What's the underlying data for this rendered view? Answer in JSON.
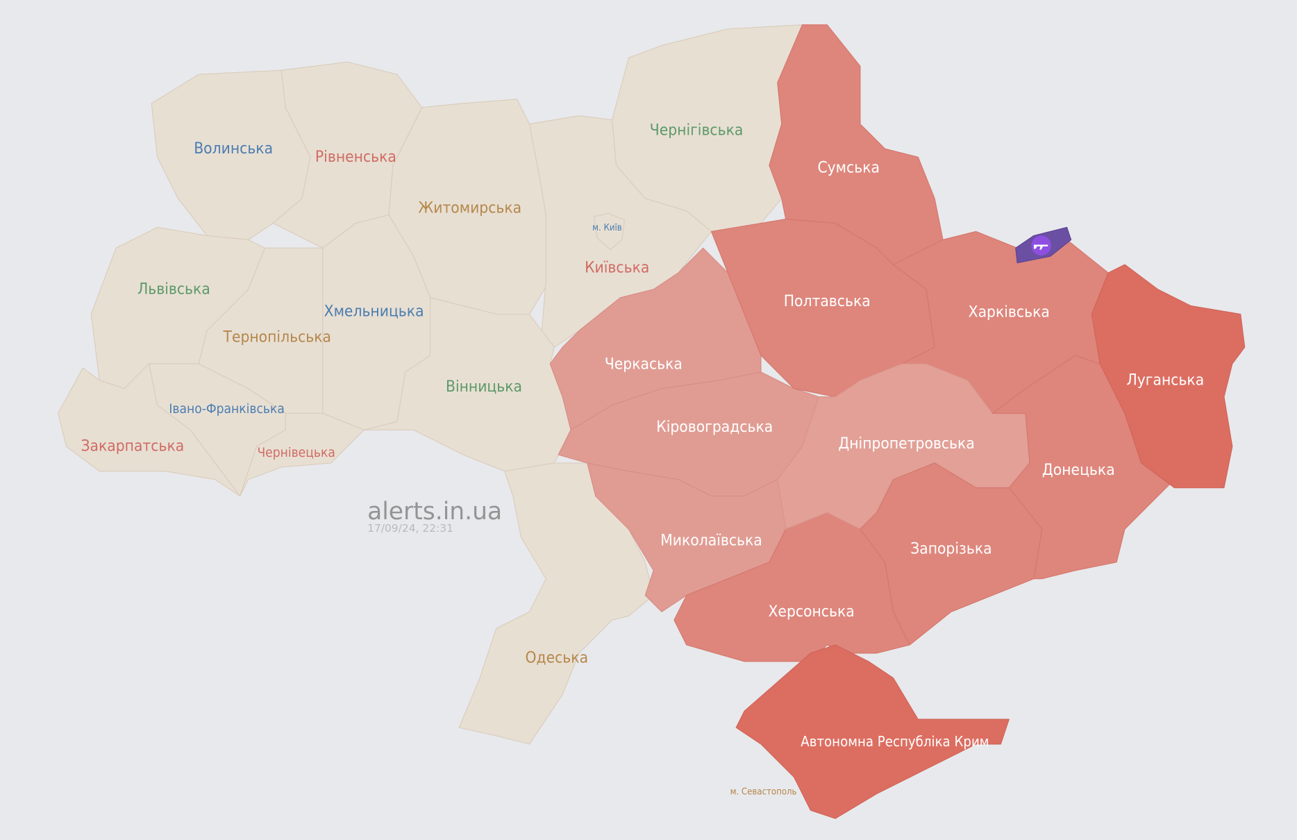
{
  "brand": {
    "name": "alerts.in.ua",
    "timestamp": "17/09/24, 22:31"
  },
  "colors": {
    "background": "#e8e9ec",
    "no_alert": "#e8dfd3",
    "alert_light": "#e09c93",
    "alert": "#de867c",
    "alert_strong": "#dc6e61",
    "special": "#6a4fa3"
  },
  "regions": {
    "volyn": {
      "name": "Волинська",
      "alert": false
    },
    "rivne": {
      "name": "Рівненська",
      "alert": false
    },
    "zhytomyr": {
      "name": "Житомирська",
      "alert": false
    },
    "kyiv_oblast": {
      "name": "Київська",
      "alert": false
    },
    "kyiv_city": {
      "name": "м. Київ",
      "alert": false
    },
    "chernihiv": {
      "name": "Чернігівська",
      "alert": false
    },
    "lviv": {
      "name": "Львівська",
      "alert": false
    },
    "zakarpattia": {
      "name": "Закарпатська",
      "alert": false
    },
    "ivano_frankivsk": {
      "name": "Івано-Франківська",
      "alert": false
    },
    "ternopil": {
      "name": "Тернопільська",
      "alert": false
    },
    "khmelnytskyi": {
      "name": "Хмельницька",
      "alert": false
    },
    "chernivtsi": {
      "name": "Чернівецька",
      "alert": false
    },
    "vinnytsia": {
      "name": "Вінницька",
      "alert": false
    },
    "odesa": {
      "name": "Одеська",
      "alert": false
    },
    "cherkasy": {
      "name": "Черкаська",
      "alert": true
    },
    "kirovohrad": {
      "name": "Кіровоградська",
      "alert": true
    },
    "mykolaiv": {
      "name": "Миколаївська",
      "alert": true
    },
    "kherson": {
      "name": "Херсонська",
      "alert": true
    },
    "crimea": {
      "name": "Автономна Республіка Крим",
      "alert": true
    },
    "sevastopol": {
      "name": "м. Севастополь",
      "alert": true
    },
    "poltava": {
      "name": "Полтавська",
      "alert": true
    },
    "sumy": {
      "name": "Сумська",
      "alert": true
    },
    "kharkiv": {
      "name": "Харківська",
      "alert": true
    },
    "dnipro": {
      "name": "Дніпропетровська",
      "alert": true
    },
    "zaporizhzhia": {
      "name": "Запорізька",
      "alert": true
    },
    "donetsk": {
      "name": "Донецька",
      "alert": true
    },
    "luhansk": {
      "name": "Луганська",
      "alert": true
    }
  },
  "special_marker": {
    "icon": "rifle-icon",
    "meaning": "ground combat area"
  }
}
